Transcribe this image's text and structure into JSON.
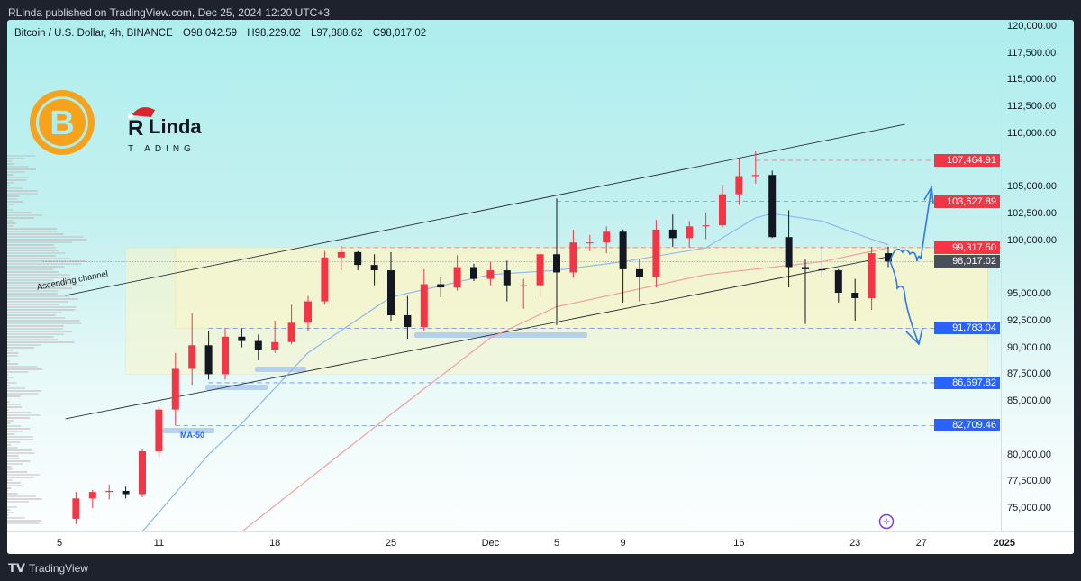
{
  "publish_line": "RLinda published on TradingView.com, Dec 25, 2024 12:20 UTC+3",
  "symbol": {
    "name": "Bitcoin / U.S. Dollar, 4h, BINANCE",
    "open": "O98,042.59",
    "high": "H98,229.02",
    "low": "L97,888.62",
    "close": "C98,017.02"
  },
  "footer_brand": "TradingView",
  "logo_text": "RLinda TRADING",
  "colors": {
    "up": "#f23645",
    "down": "#131722",
    "ma50": "#8fb8f0",
    "ma200": "#f2a0a0",
    "resistance": "#f23645",
    "support": "#2962ff",
    "current": "#4a4e59",
    "zone": "#fbf6c8",
    "channel": "#2a2e39",
    "arrows": "#2f7ae5"
  },
  "chart_data": {
    "type": "candlestick",
    "title": "",
    "y_range": [
      72800,
      120000
    ],
    "y_ticks": [
      "120,000.00",
      "117,500.00",
      "115,000.00",
      "112,500.00",
      "110,000.00",
      "105,000.00",
      "102,500.00",
      "100,000.00",
      "95,000.00",
      "92,500.00",
      "90,000.00",
      "87,500.00",
      "85,000.00",
      "80,000.00",
      "77,500.00",
      "75,000.00"
    ],
    "y_tick_values": [
      120000,
      117500,
      115000,
      112500,
      110000,
      105000,
      102500,
      100000,
      95000,
      92500,
      90000,
      87500,
      85000,
      80000,
      77500,
      75000
    ],
    "x_ticks": [
      {
        "label": "5",
        "date": "2024-11-05"
      },
      {
        "label": "11",
        "date": "2024-11-11"
      },
      {
        "label": "18",
        "date": "2024-11-18"
      },
      {
        "label": "25",
        "date": "2024-11-25"
      },
      {
        "label": "Dec",
        "date": "2024-12-01"
      },
      {
        "label": "5",
        "date": "2024-12-05"
      },
      {
        "label": "9",
        "date": "2024-12-09"
      },
      {
        "label": "16",
        "date": "2024-12-16"
      },
      {
        "label": "23",
        "date": "2024-12-23"
      },
      {
        "label": "27",
        "date": "2024-12-27"
      },
      {
        "label": "2025",
        "date": "2025-01-01"
      }
    ],
    "candles": [
      [
        "2024-11-06",
        74000,
        76500,
        73500,
        75900
      ],
      [
        "2024-11-07",
        75900,
        76700,
        75000,
        76500
      ],
      [
        "2024-11-08",
        76500,
        77200,
        75800,
        76600
      ],
      [
        "2024-11-09",
        76600,
        77000,
        75900,
        76300
      ],
      [
        "2024-11-10",
        76300,
        80500,
        76000,
        80300
      ],
      [
        "2024-11-11",
        80300,
        84500,
        79800,
        84200
      ],
      [
        "2024-11-12",
        84200,
        89500,
        82709,
        88000
      ],
      [
        "2024-11-13",
        88000,
        93200,
        86500,
        90200
      ],
      [
        "2024-11-14",
        90200,
        91500,
        87000,
        87500
      ],
      [
        "2024-11-15",
        87500,
        91800,
        87000,
        91000
      ],
      [
        "2024-11-16",
        91000,
        91800,
        90000,
        90600
      ],
      [
        "2024-11-17",
        90600,
        91200,
        88800,
        89800
      ],
      [
        "2024-11-18",
        89800,
        92500,
        89500,
        90500
      ],
      [
        "2024-11-19",
        90500,
        94000,
        90300,
        92300
      ],
      [
        "2024-11-20",
        92300,
        94800,
        91500,
        94300
      ],
      [
        "2024-11-21",
        94300,
        99000,
        94000,
        98400
      ],
      [
        "2024-11-22",
        98400,
        99500,
        97200,
        98900
      ],
      [
        "2024-11-23",
        98900,
        99000,
        97200,
        97700
      ],
      [
        "2024-11-24",
        97700,
        98700,
        95800,
        97200
      ],
      [
        "2024-11-25",
        97200,
        98900,
        92500,
        93000
      ],
      [
        "2024-11-26",
        93000,
        94800,
        90800,
        91900
      ],
      [
        "2024-11-27",
        91900,
        97300,
        91500,
        95900
      ],
      [
        "2024-11-28",
        95900,
        96600,
        94700,
        95600
      ],
      [
        "2024-11-29",
        95600,
        98600,
        95300,
        97500
      ],
      [
        "2024-11-30",
        97500,
        97800,
        96200,
        96400
      ],
      [
        "2024-12-01",
        96400,
        98000,
        95800,
        97200
      ],
      [
        "2024-12-02",
        97200,
        98100,
        94300,
        95800
      ],
      [
        "2024-12-03",
        95800,
        96400,
        93600,
        95800
      ],
      [
        "2024-12-04",
        95800,
        99000,
        94700,
        98700
      ],
      [
        "2024-12-05",
        98700,
        103900,
        92100,
        97000
      ],
      [
        "2024-12-06",
        97000,
        101000,
        96500,
        99800
      ],
      [
        "2024-12-07",
        99800,
        100500,
        99000,
        99800
      ],
      [
        "2024-12-08",
        99800,
        101300,
        98800,
        100800
      ],
      [
        "2024-12-09",
        100800,
        101000,
        94200,
        97300
      ],
      [
        "2024-12-10",
        97300,
        98200,
        94300,
        96600
      ],
      [
        "2024-12-11",
        96600,
        101900,
        95600,
        101000
      ],
      [
        "2024-12-12",
        101000,
        102400,
        99400,
        100200
      ],
      [
        "2024-12-13",
        100200,
        101800,
        99300,
        101300
      ],
      [
        "2024-12-14",
        101300,
        102600,
        100100,
        101400
      ],
      [
        "2024-12-15",
        101400,
        105200,
        101200,
        104300
      ],
      [
        "2024-12-16",
        104300,
        107700,
        103300,
        106000
      ],
      [
        "2024-12-17",
        106000,
        108300,
        105300,
        106100
      ],
      [
        "2024-12-18",
        106100,
        106500,
        100200,
        100300
      ],
      [
        "2024-12-19",
        100300,
        102800,
        95600,
        97500
      ],
      [
        "2024-12-20",
        97500,
        98200,
        92200,
        97300
      ],
      [
        "2024-12-21",
        97300,
        99500,
        96500,
        97200
      ],
      [
        "2024-12-22",
        97200,
        97300,
        94200,
        95100
      ],
      [
        "2024-12-23",
        95100,
        96400,
        92500,
        94600
      ],
      [
        "2024-12-24",
        94600,
        99400,
        93500,
        98800
      ],
      [
        "2024-12-25",
        98800,
        99400,
        97500,
        98017.02
      ]
    ],
    "ma50": [
      [
        "2024-11-10",
        72800
      ],
      [
        "2024-11-14",
        80000
      ],
      [
        "2024-11-16",
        82900
      ],
      [
        "2024-11-20",
        89500
      ],
      [
        "2024-11-25",
        94700
      ],
      [
        "2024-12-01",
        96800
      ],
      [
        "2024-12-05",
        97200
      ],
      [
        "2024-12-09",
        98000
      ],
      [
        "2024-12-14",
        99300
      ],
      [
        "2024-12-17",
        102100
      ],
      [
        "2024-12-18",
        102500
      ],
      [
        "2024-12-21",
        101800
      ],
      [
        "2024-12-24",
        100100
      ],
      [
        "2024-12-25",
        99600
      ]
    ],
    "ma200": [
      [
        "2024-11-16",
        72800
      ],
      [
        "2024-11-25",
        83750
      ],
      [
        "2024-12-01",
        90900
      ],
      [
        "2024-12-05",
        93800
      ],
      [
        "2024-12-14",
        96800
      ],
      [
        "2024-12-21",
        98000
      ],
      [
        "2024-12-25",
        99300
      ]
    ],
    "levels": [
      {
        "label": "107,464.91",
        "value": 107464.91,
        "kind": "resistance",
        "from": "2024-12-17"
      },
      {
        "label": "103,627.89",
        "value": 103627.89,
        "kind": "resistance",
        "from": "2024-12-05"
      },
      {
        "label": "99,317.50",
        "value": 99317.5,
        "kind": "resistance",
        "from": "2024-11-22"
      },
      {
        "label": "98,017.02",
        "value": 98017.02,
        "kind": "current",
        "from": "2024-11-04"
      },
      {
        "label": "91,783.04",
        "value": 91783.04,
        "kind": "support",
        "from": "2024-11-14"
      },
      {
        "label": "86,697.82",
        "value": 86697.82,
        "kind": "support",
        "from": "2024-11-14"
      },
      {
        "label": "82,709.46",
        "value": 82709.46,
        "kind": "support",
        "from": "2024-11-12"
      }
    ],
    "zones": [
      {
        "from": "2024-11-09",
        "to": "2024-12-31",
        "top": 99317.5,
        "bottom": 87500
      },
      {
        "from": "2024-11-12",
        "to": "2024-12-31",
        "top": 99317.5,
        "bottom": 91783.04
      }
    ],
    "channel": {
      "label": "Ascending channel",
      "upper": [
        [
          "2024-11-04",
          94850
        ],
        [
          "2024-12-26",
          110830
        ]
      ],
      "lower": [
        [
          "2024-11-04",
          83330
        ],
        [
          "2024-12-25",
          98470
        ]
      ]
    },
    "annotations": [
      {
        "label": "MA-50"
      }
    ]
  }
}
